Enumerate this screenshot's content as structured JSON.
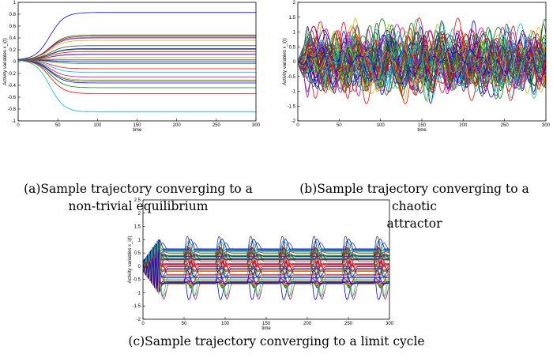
{
  "colors": [
    "#0000ff",
    "#008000",
    "#ff0000",
    "#00bfbf",
    "#bf00bf",
    "#bfbf00",
    "#404040"
  ],
  "chart_data": [
    {
      "id": "a",
      "type": "line",
      "caption": "(a)Sample trajectory converging to a non-trivial equilibrium",
      "caption_lines": [
        "(a)Sample trajectory converging to a",
        "non-trivial equilibrium"
      ],
      "xlabel": "time",
      "ylabel": "Activity variables x_i(t)",
      "xlim": [
        0,
        300
      ],
      "ylim": [
        -1,
        1
      ],
      "xticks": [
        0,
        50,
        100,
        150,
        200,
        250,
        300
      ],
      "yticks": [
        -1,
        -0.8,
        -0.6,
        -0.4,
        -0.2,
        0,
        0.2,
        0.4,
        0.6,
        0.8,
        1
      ],
      "behavior": "equilibrium",
      "equilibrium_values": [
        0.83,
        0.45,
        0.43,
        0.41,
        0.4,
        0.36,
        0.27,
        0.22,
        0.21,
        0.17,
        0.13,
        0.12,
        0.07,
        0.03,
        0.0,
        -0.03,
        -0.12,
        -0.18,
        -0.26,
        -0.31,
        -0.33,
        -0.36,
        -0.44,
        -0.54,
        -0.85
      ]
    },
    {
      "id": "b",
      "type": "line",
      "caption": "(b)Sample trajectory converging to a chaotic attractor",
      "caption_lines": [
        "(b)Sample trajectory converging to a chaotic",
        "attractor"
      ],
      "xlabel": "time",
      "ylabel": "Activity variables x_i(t)",
      "xlim": [
        0,
        300
      ],
      "ylim": [
        -2,
        2
      ],
      "xticks": [
        0,
        50,
        100,
        150,
        200,
        250,
        300
      ],
      "yticks": [
        -2,
        -1.5,
        -1,
        -0.5,
        0,
        0.5,
        1,
        1.5,
        2
      ],
      "behavior": "chaotic",
      "n_series": 60,
      "amplitude_range": [
        -1.8,
        1.95
      ]
    },
    {
      "id": "c",
      "type": "line",
      "caption": "(c)Sample trajectory converging to a limit cycle",
      "caption_lines": [
        "(c)Sample trajectory converging to a limit cycle"
      ],
      "xlabel": "time",
      "ylabel": "Activity variables x_i(t)",
      "xlim": [
        0,
        300
      ],
      "ylim": [
        -2,
        2.5
      ],
      "xticks": [
        0,
        50,
        100,
        150,
        200,
        250,
        300
      ],
      "yticks": [
        -2,
        -1.5,
        -1,
        -0.5,
        0,
        0.5,
        1,
        1.5,
        2,
        2.5
      ],
      "behavior": "limit-cycle",
      "period": 38.5,
      "n_series": 50,
      "amplitude_range": [
        -2,
        2
      ]
    }
  ]
}
